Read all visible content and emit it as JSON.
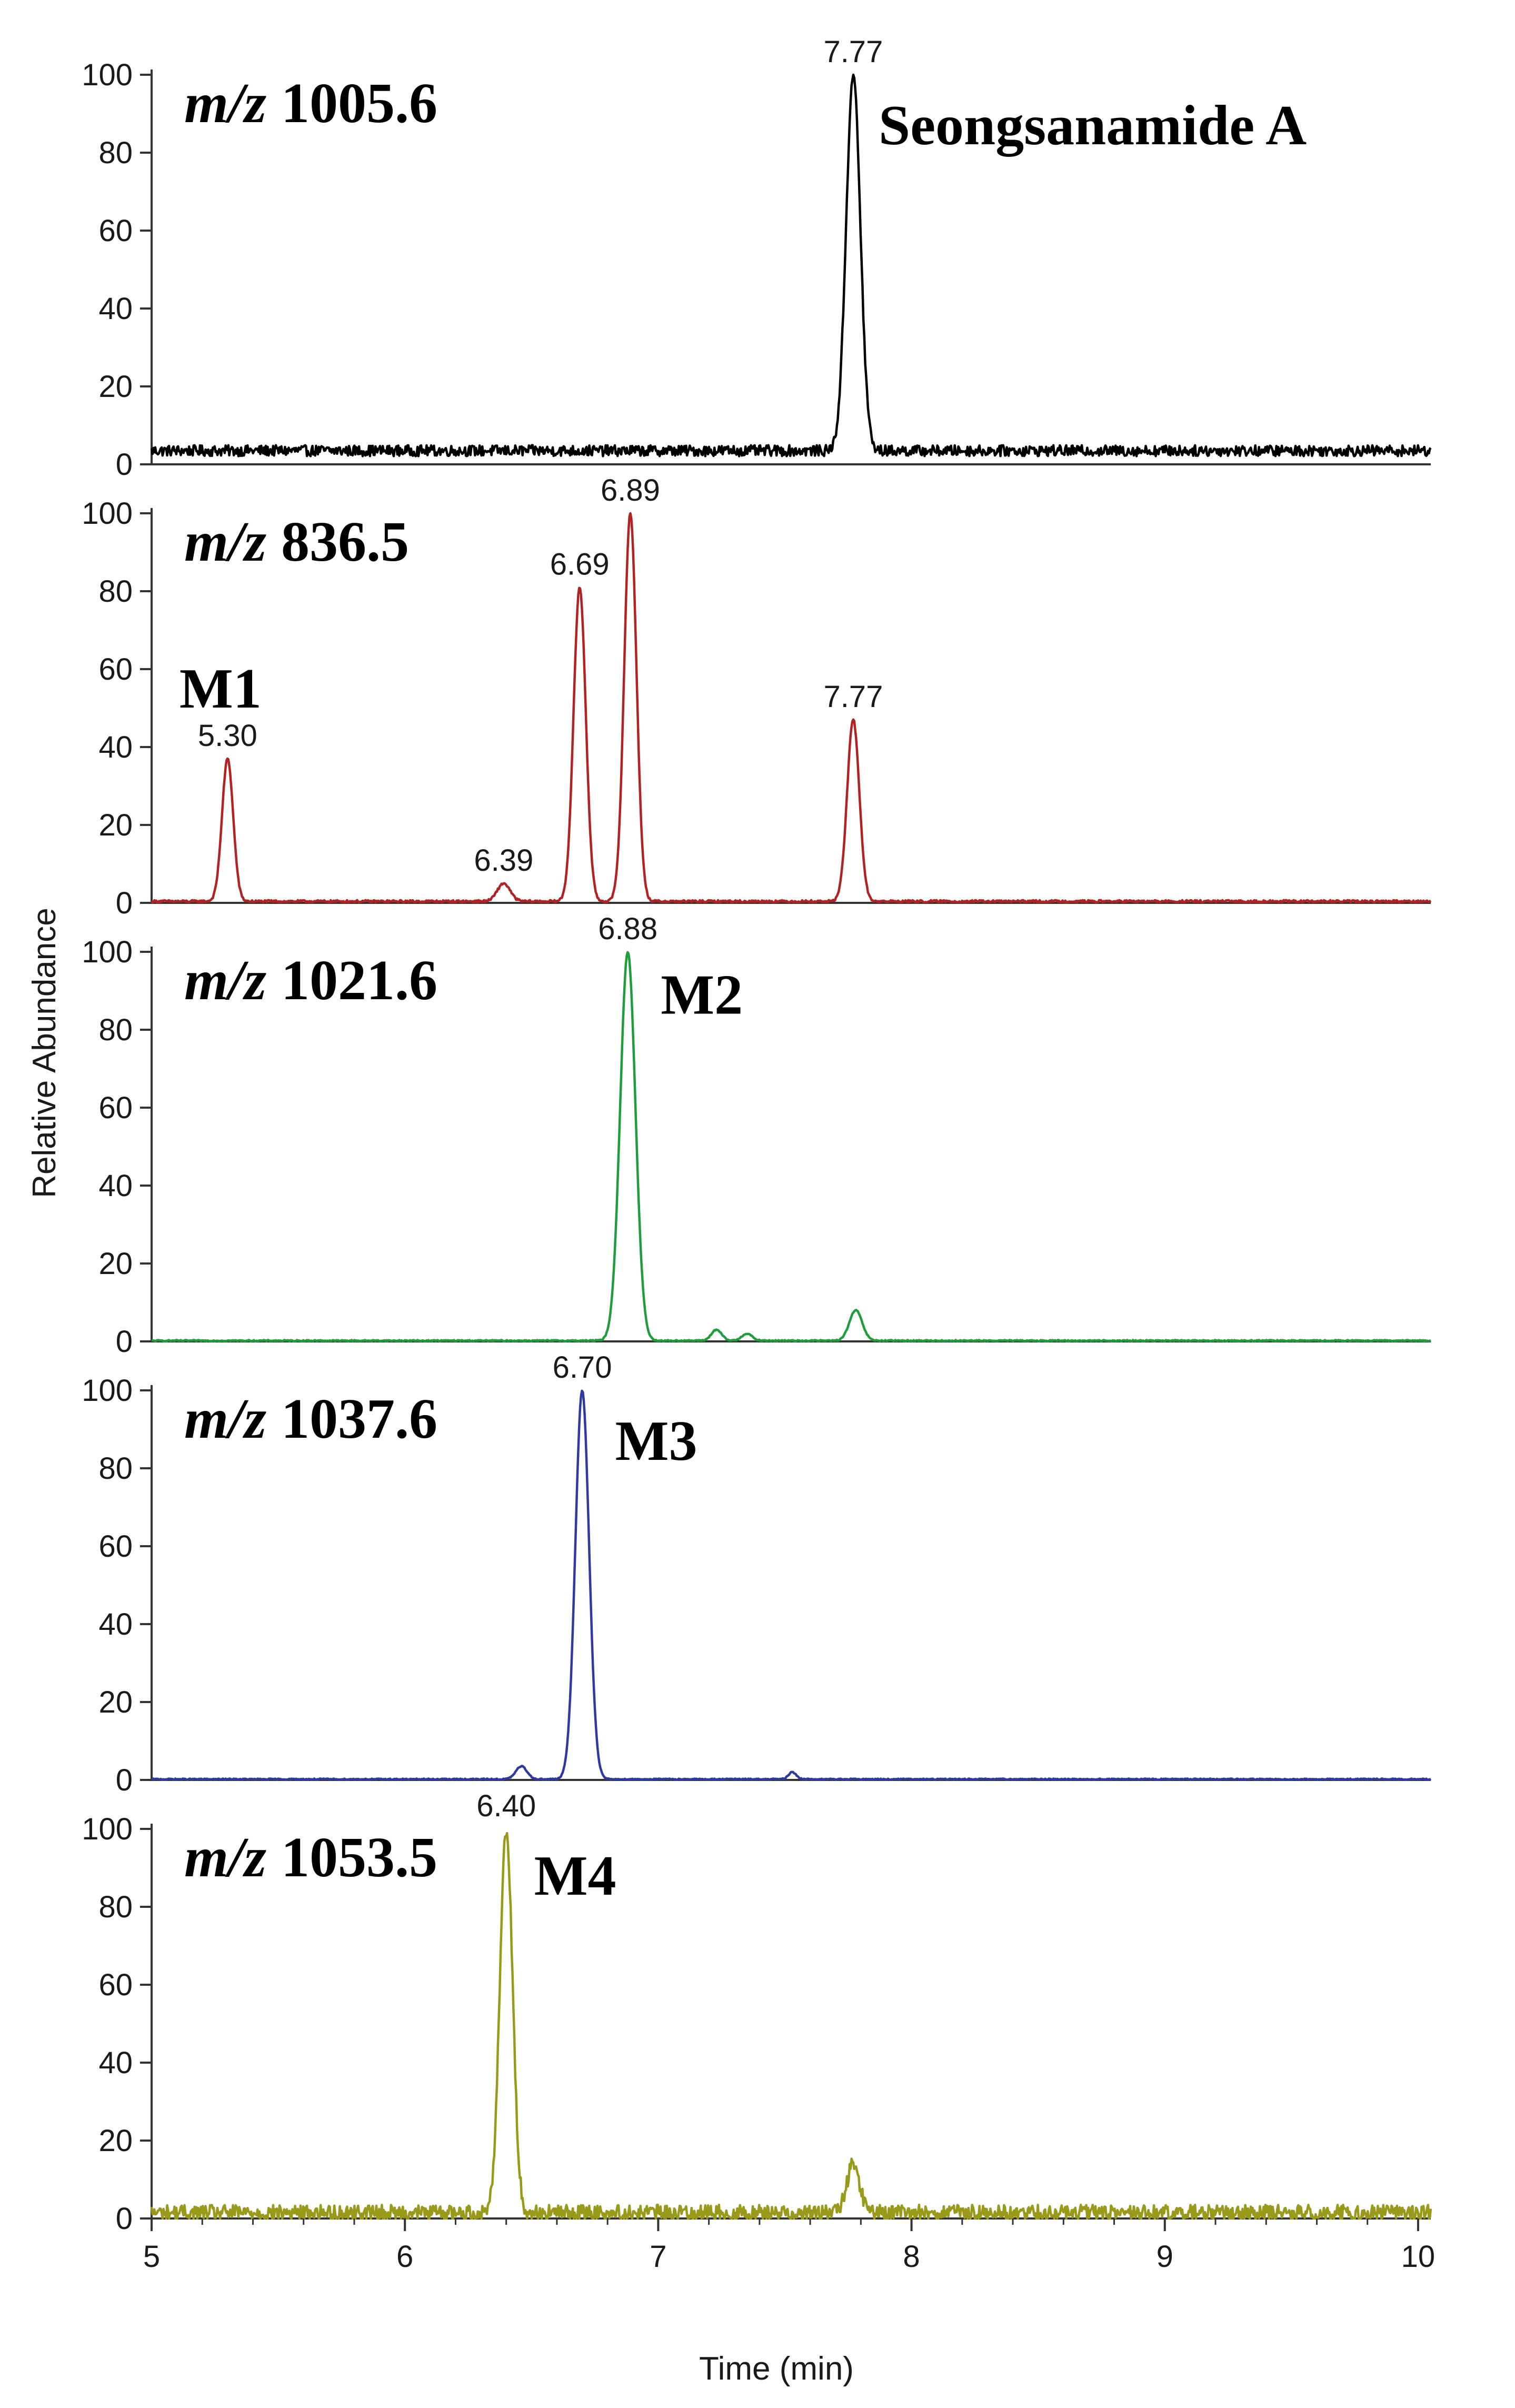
{
  "figure": {
    "x_axis_label": "Time (min)",
    "y_axis_label": "Relative Abundance"
  },
  "chart_data": {
    "type": "line",
    "xlim": [
      5,
      10.05
    ],
    "ylim": [
      0,
      100
    ],
    "x_ticks": [
      5,
      6,
      7,
      8,
      9,
      10
    ],
    "y_ticks": [
      0,
      20,
      40,
      60,
      80,
      100
    ],
    "xlabel": "Time (min)",
    "ylabel": "Relative Abundance",
    "panels": [
      {
        "mz_prefix": "m/z",
        "mz_value": "1005.6",
        "color": "#000000",
        "baseline": 3.5,
        "noise": 1.4,
        "peaks": [
          {
            "rt": 7.77,
            "height": 100,
            "width": 0.028,
            "label": "7.77"
          }
        ],
        "compound_labels": [
          {
            "text": "Seongsanamide A",
            "x": 7.87,
            "y": 87
          }
        ]
      },
      {
        "mz_prefix": "m/z",
        "mz_value": "836.5",
        "color": "#b22222",
        "baseline": 0.4,
        "noise": 0.3,
        "peaks": [
          {
            "rt": 5.3,
            "height": 37,
            "width": 0.022,
            "label": "5.30"
          },
          {
            "rt": 6.39,
            "height": 5,
            "width": 0.025,
            "label": "6.39"
          },
          {
            "rt": 6.69,
            "height": 81,
            "width": 0.024,
            "label": "6.69"
          },
          {
            "rt": 6.89,
            "height": 100,
            "width": 0.024,
            "label": "6.89"
          },
          {
            "rt": 7.77,
            "height": 47,
            "width": 0.024,
            "label": "7.77"
          }
        ],
        "compound_labels": [
          {
            "text": "M1",
            "x": 5.11,
            "y": 55
          }
        ]
      },
      {
        "mz_prefix": "m/z",
        "mz_value": "1021.6",
        "color": "#1e9e3a",
        "baseline": 0.2,
        "noise": 0.15,
        "peaks": [
          {
            "rt": 6.88,
            "height": 100,
            "width": 0.03,
            "label": "6.88"
          },
          {
            "rt": 7.23,
            "height": 3,
            "width": 0.02,
            "label": ""
          },
          {
            "rt": 7.35,
            "height": 2,
            "width": 0.02,
            "label": ""
          },
          {
            "rt": 7.78,
            "height": 8,
            "width": 0.025,
            "label": ""
          }
        ],
        "compound_labels": [
          {
            "text": "M2",
            "x": 7.01,
            "y": 89
          }
        ]
      },
      {
        "mz_prefix": "m/z",
        "mz_value": "1037.6",
        "color": "#2f3aa0",
        "baseline": 0.2,
        "noise": 0.15,
        "peaks": [
          {
            "rt": 6.46,
            "height": 3.5,
            "width": 0.022,
            "label": ""
          },
          {
            "rt": 6.7,
            "height": 100,
            "width": 0.027,
            "label": "6.70"
          },
          {
            "rt": 7.53,
            "height": 2,
            "width": 0.015,
            "label": ""
          }
        ],
        "compound_labels": [
          {
            "text": "M3",
            "x": 6.83,
            "y": 87
          }
        ]
      },
      {
        "mz_prefix": "m/z",
        "mz_value": "1053.5",
        "color": "#9a9a1a",
        "baseline": 1.5,
        "noise": 2.0,
        "peaks": [
          {
            "rt": 6.4,
            "height": 100,
            "width": 0.025,
            "label": "6.40"
          },
          {
            "rt": 7.77,
            "height": 14,
            "width": 0.025,
            "label": ""
          }
        ],
        "compound_labels": [
          {
            "text": "M4",
            "x": 6.51,
            "y": 88
          }
        ]
      }
    ]
  }
}
